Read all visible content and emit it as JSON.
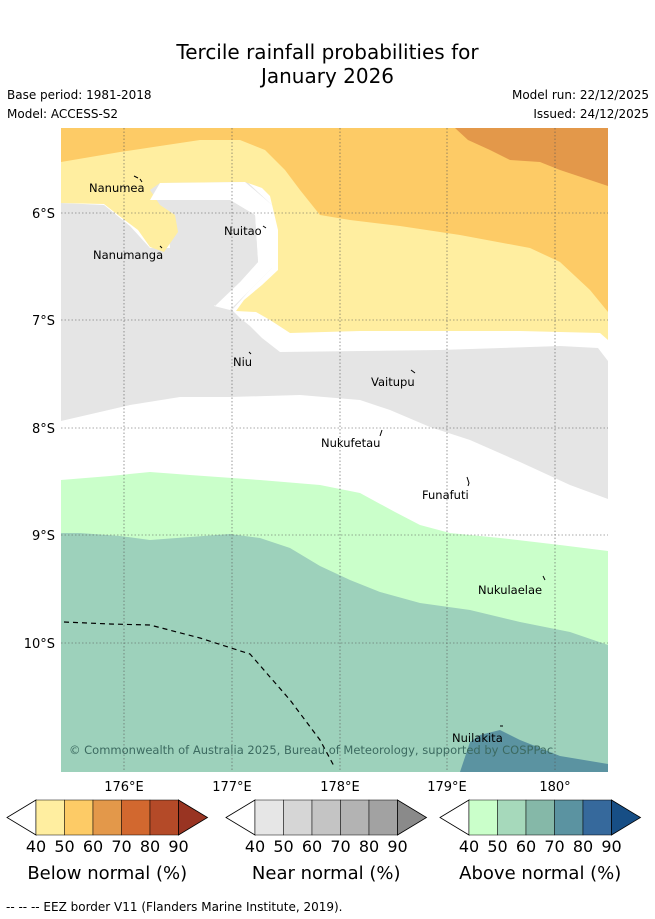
{
  "title": {
    "line1": "Tercile rainfall probabilities for",
    "line2": "January 2026"
  },
  "meta": {
    "base_period": "Base period: 1981-2018",
    "model": "Model: ACCESS-S2",
    "model_run": "Model run: 22/12/2025",
    "issued": "Issued: 24/12/2025"
  },
  "axes": {
    "lat_labels": [
      "6°S",
      "7°S",
      "8°S",
      "9°S",
      "10°S"
    ],
    "lon_labels": [
      "176°E",
      "177°E",
      "178°E",
      "179°E",
      "180°"
    ]
  },
  "places": [
    {
      "name": "Nanumea"
    },
    {
      "name": "Nanumanga"
    },
    {
      "name": "Nuitao"
    },
    {
      "name": "Niu"
    },
    {
      "name": "Vaitupu"
    },
    {
      "name": "Nukufetau"
    },
    {
      "name": "Funafuti"
    },
    {
      "name": "Nukulaelae"
    },
    {
      "name": "Nuilakita"
    }
  ],
  "copyright": "© Commonwealth of Australia 2025, Bureau of Meteorology, supported by COSPPac",
  "colorbars": [
    {
      "label": "Below normal (%)",
      "ticks": [
        "40",
        "50",
        "60",
        "70",
        "80",
        "90"
      ],
      "colors": [
        "#ffeea0",
        "#fdcb66",
        "#e3984a",
        "#d2682f",
        "#b44a28",
        "#993422"
      ]
    },
    {
      "label": "Near normal (%)",
      "ticks": [
        "40",
        "50",
        "60",
        "70",
        "80",
        "90"
      ],
      "colors": [
        "#e6e6e6",
        "#d6d6d6",
        "#c4c4c4",
        "#b3b3b3",
        "#a2a2a2",
        "#8a8a8a"
      ]
    },
    {
      "label": "Above normal (%)",
      "ticks": [
        "40",
        "50",
        "60",
        "70",
        "80",
        "90"
      ],
      "colors": [
        "#caffca",
        "#a6d9bb",
        "#85b8a8",
        "#5b93a1",
        "#36699c",
        "#174e85"
      ]
    }
  ],
  "footnote": "-- -- -- EEZ border V11 (Flanders Marine Institute, 2019)."
}
